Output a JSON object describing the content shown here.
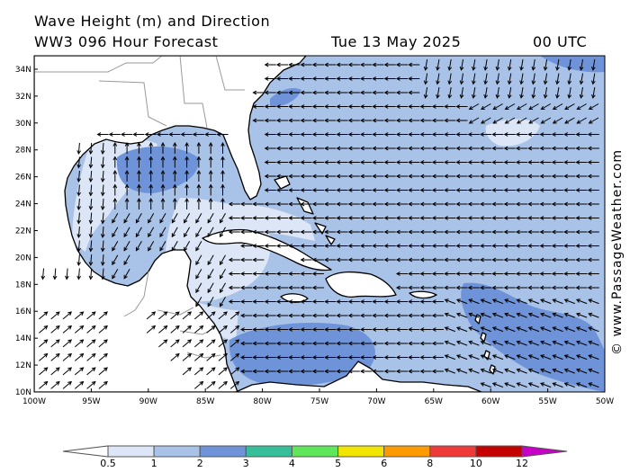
{
  "header": {
    "title_line1": "Wave Height (m) and Direction",
    "title_line2": "WW3 096 Hour Forecast",
    "date": "Tue 13 May 2025",
    "time": "00 UTC"
  },
  "credit": "© www.PassageWeather.com",
  "map": {
    "lat_labels": [
      "10N",
      "12N",
      "14N",
      "16N",
      "18N",
      "20N",
      "22N",
      "24N",
      "26N",
      "28N",
      "30N",
      "32N",
      "34N"
    ],
    "lon_labels": [
      "100W",
      "95W",
      "90W",
      "85W",
      "80W",
      "75W",
      "70W",
      "65W",
      "60W",
      "55W",
      "50W"
    ],
    "lon_range": [
      -100,
      -50
    ],
    "lat_range": [
      10,
      35
    ],
    "colors": {
      "land": "#ffffff",
      "wave_0_5_1": "#dce6f6",
      "wave_1_2": "#a9c2e8",
      "wave_2_3": "#6f93d8",
      "coast": "#000000",
      "border": "#9a9a9a"
    }
  },
  "legend": {
    "labels": [
      "0.5",
      "1",
      "2",
      "3",
      "4",
      "5",
      "6",
      "8",
      "10",
      "12"
    ],
    "colors": [
      "#dce6f6",
      "#a9c2e8",
      "#6f93d8",
      "#36bf9a",
      "#5fe65a",
      "#f2e600",
      "#ff9a00",
      "#ef3a3a",
      "#c40000",
      "#c800c8"
    ]
  }
}
